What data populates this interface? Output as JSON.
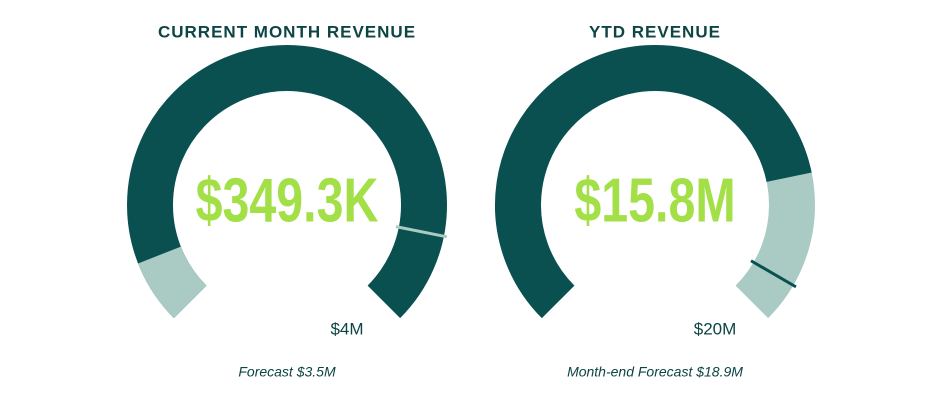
{
  "chart_data": [
    {
      "type": "gauge",
      "title": "CURRENT MONTH REVENUE",
      "value": 349300,
      "value_label": "$349.3K",
      "max": {
        "value": 4000000,
        "label": "$4M"
      },
      "forecast": {
        "value": 3500000,
        "label": "Forecast $3.5M"
      },
      "fill_color": "#a9cbc3",
      "track_color": "#0b5050"
    },
    {
      "type": "gauge",
      "title": "YTD REVENUE",
      "value": 15800000,
      "value_label": "$15.8M",
      "max": {
        "value": 20000000,
        "label": "$20M"
      },
      "forecast": {
        "value": 18900000,
        "label": "Month-end Forecast $18.9M"
      },
      "fill_color": "#0b5050",
      "track_color": "#a9cbc3"
    }
  ]
}
